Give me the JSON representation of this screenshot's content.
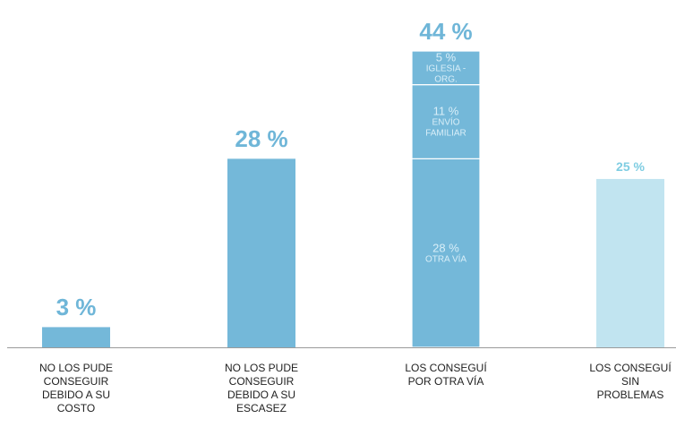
{
  "chart_data": {
    "type": "bar",
    "categories": [
      "NO LOS PUDE CONSEGUIR DEBIDO A SU COSTO",
      "NO LOS PUDE CONSEGUIR DEBIDO A SU ESCASEZ",
      "LOS CONSEGUÍ POR OTRA VÍA",
      "LOS CONSEGUÍ SIN PROBLEMAS"
    ],
    "values": [
      3,
      28,
      44,
      25
    ],
    "value_labels": [
      "3 %",
      "28 %",
      "44 %",
      "25 %"
    ],
    "colors": [
      "#74b8d9",
      "#74b8d9",
      "#74b8d9",
      "#c1e4f0"
    ],
    "segments": {
      "category": 2,
      "items": [
        {
          "name": "OTRA VÍA",
          "value": 28,
          "value_label": "28 %"
        },
        {
          "name": "ENVÍO FAMILIAR",
          "value": 11,
          "value_label": "11 %"
        },
        {
          "name": "IGLESIA - ORG.",
          "value": 5,
          "value_label": "5 %"
        }
      ]
    }
  }
}
